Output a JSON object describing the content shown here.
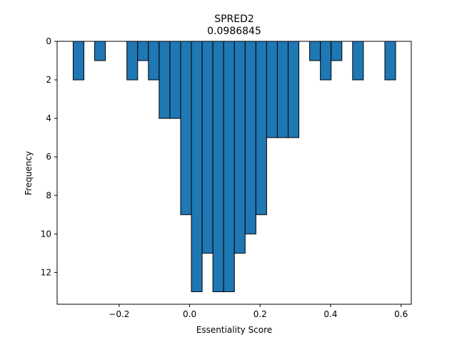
{
  "chart_data": {
    "type": "bar",
    "title": "SPRED2",
    "subtitle": "0.0986845",
    "xlabel": "Essentiality Score",
    "ylabel": "Frequency",
    "xlim": [
      -0.376,
      0.629
    ],
    "ylim": [
      13.65,
      0
    ],
    "y_inverted": true,
    "bin_width": 0.0305,
    "bar_color": "#1f77b4",
    "edge_color": "#000000",
    "xticks": [
      {
        "value": -0.2,
        "label": "−0.2"
      },
      {
        "value": 0.0,
        "label": "0.0"
      },
      {
        "value": 0.2,
        "label": "0.2"
      },
      {
        "value": 0.4,
        "label": "0.4"
      },
      {
        "value": 0.6,
        "label": "0.6"
      }
    ],
    "yticks": [
      {
        "value": 0,
        "label": "0"
      },
      {
        "value": 2,
        "label": "2"
      },
      {
        "value": 4,
        "label": "4"
      },
      {
        "value": 6,
        "label": "6"
      },
      {
        "value": 8,
        "label": "8"
      },
      {
        "value": 10,
        "label": "10"
      },
      {
        "value": 12,
        "label": "12"
      }
    ],
    "bins": [
      {
        "x": -0.3305,
        "count": 2
      },
      {
        "x": -0.2695,
        "count": 1
      },
      {
        "x": -0.178,
        "count": 2
      },
      {
        "x": -0.1475,
        "count": 1
      },
      {
        "x": -0.117,
        "count": 2
      },
      {
        "x": -0.0865,
        "count": 4
      },
      {
        "x": -0.056,
        "count": 4
      },
      {
        "x": -0.0255,
        "count": 9
      },
      {
        "x": 0.005,
        "count": 13
      },
      {
        "x": 0.0355,
        "count": 11
      },
      {
        "x": 0.066,
        "count": 13
      },
      {
        "x": 0.0965,
        "count": 13
      },
      {
        "x": 0.127,
        "count": 11
      },
      {
        "x": 0.1575,
        "count": 10
      },
      {
        "x": 0.188,
        "count": 9
      },
      {
        "x": 0.2185,
        "count": 5
      },
      {
        "x": 0.249,
        "count": 5
      },
      {
        "x": 0.2795,
        "count": 5
      },
      {
        "x": 0.3405,
        "count": 1
      },
      {
        "x": 0.371,
        "count": 2
      },
      {
        "x": 0.4015,
        "count": 1
      },
      {
        "x": 0.4625,
        "count": 2
      },
      {
        "x": 0.554,
        "count": 2
      }
    ]
  }
}
